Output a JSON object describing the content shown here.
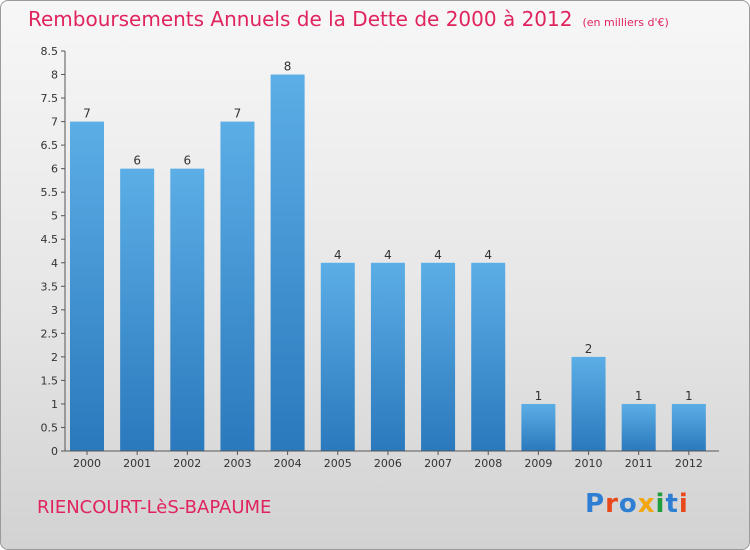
{
  "title": "Remboursements Annuels de la Dette de 2000 à 2012",
  "unit": "(en milliers d'€)",
  "commune": "RIENCOURT-LèS-BAPAUME",
  "logo": {
    "text": "Proxiti",
    "colors": [
      "#2e7fd3",
      "#e8481c",
      "#2e7fd3",
      "#f2a60f",
      "#1f9e3e",
      "#2e7fd3",
      "#e8481c"
    ]
  },
  "colors": {
    "title": "#e0245e",
    "bar_top": "#5caee6",
    "bar_bottom": "#2a79bd"
  },
  "chart_data": {
    "type": "bar",
    "categories": [
      "2000",
      "2001",
      "2002",
      "2003",
      "2004",
      "2005",
      "2006",
      "2007",
      "2008",
      "2009",
      "2010",
      "2011",
      "2012"
    ],
    "values": [
      7,
      6,
      6,
      7,
      8,
      4,
      4,
      4,
      4,
      1,
      2,
      1,
      1
    ],
    "ylim": [
      0,
      8.5
    ],
    "yticks": [
      "0",
      "0.5",
      "1",
      "1.5",
      "2",
      "2.5",
      "3",
      "3.5",
      "4",
      "4.5",
      "5",
      "5.5",
      "6",
      "6.5",
      "7",
      "7.5",
      "8",
      "8.5"
    ],
    "grid": false,
    "legend": "none"
  }
}
